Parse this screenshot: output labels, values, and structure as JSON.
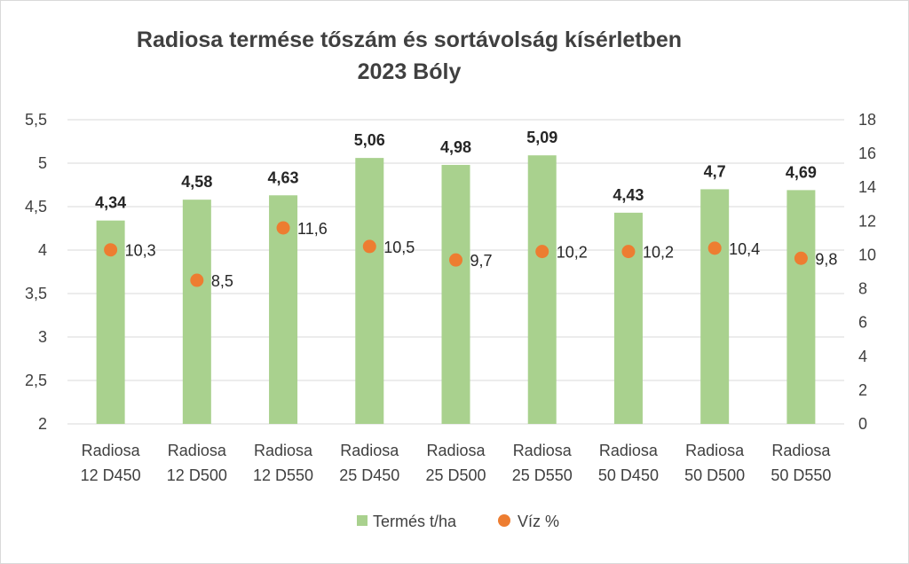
{
  "chart_data": {
    "type": "bar",
    "title": "Radiosa termése tőszám és sortávolság kísérletben",
    "subtitle": "2023 Bóly",
    "categories": [
      [
        "Radiosa",
        "12 D450"
      ],
      [
        "Radiosa",
        "12 D500"
      ],
      [
        "Radiosa",
        "12 D550"
      ],
      [
        "Radiosa",
        "25 D450"
      ],
      [
        "Radiosa",
        "25 D500"
      ],
      [
        "Radiosa",
        "25 D550"
      ],
      [
        "Radiosa",
        "50 D450"
      ],
      [
        "Radiosa",
        "50 D500"
      ],
      [
        "Radiosa",
        "50 D550"
      ]
    ],
    "series": [
      {
        "name": "Termés t/ha",
        "type": "bar",
        "axis": "left",
        "color": "#a9d18e",
        "values": [
          4.34,
          4.58,
          4.63,
          5.06,
          4.98,
          5.09,
          4.43,
          4.7,
          4.69
        ],
        "labels": [
          "4,34",
          "4,58",
          "4,63",
          "5,06",
          "4,98",
          "5,09",
          "4,43",
          "4,7",
          "4,69"
        ]
      },
      {
        "name": "Víz %",
        "type": "scatter",
        "axis": "right",
        "color": "#ed7d31",
        "values": [
          10.3,
          8.5,
          11.6,
          10.5,
          9.7,
          10.2,
          10.2,
          10.4,
          9.8
        ],
        "labels": [
          "10,3",
          "8,5",
          "11,6",
          "10,5",
          "9,7",
          "10,2",
          "10,2",
          "10,4",
          "9,8"
        ]
      }
    ],
    "y_left": {
      "ylim": [
        2,
        5.5
      ],
      "ticks": [
        2,
        2.5,
        3,
        3.5,
        4,
        4.5,
        5,
        5.5
      ],
      "tick_labels": [
        "2",
        "2,5",
        "3",
        "3,5",
        "4",
        "4,5",
        "5",
        "5,5"
      ]
    },
    "y_right": {
      "ylim": [
        0,
        18
      ],
      "ticks": [
        0,
        2,
        4,
        6,
        8,
        10,
        12,
        14,
        16,
        18
      ],
      "tick_labels": [
        "0",
        "2",
        "4",
        "6",
        "8",
        "10",
        "12",
        "14",
        "16",
        "18"
      ]
    },
    "grid": true,
    "legend_position": "bottom"
  }
}
